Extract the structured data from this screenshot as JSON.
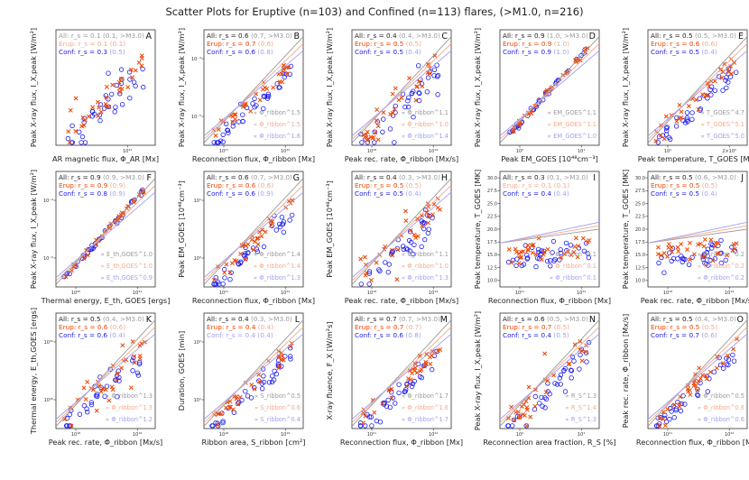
{
  "title": "Scatter Plots for Eruptive (n=103) and Confined (n=113) flares, (>M1.0, n=216)",
  "colors": {
    "all": "#222222",
    "erup": "#ee4400",
    "conf": "#1a1aee",
    "erup_light": "#f5a98a",
    "conf_light": "#a0a0f0",
    "all_light": "#9a9a9a"
  },
  "chart_data": [
    {
      "id": "A",
      "type": "scatter",
      "xlabel": "AR magnetic flux, Φ_AR [Mx]",
      "ylabel": "Peak X-ray flux, I_X,peak [W/m²]",
      "xticks": [
        "10²²"
      ],
      "yticks": [],
      "seed": 1,
      "corr": "loose",
      "stats": [
        {
          "label": "All: r_s = 0.1 ",
          "extra": "(0.1, >M3.0)",
          "faint": true
        },
        {
          "label": "Erup: r_s = 0.1 ",
          "extra": "(0.1)",
          "faint": true
        },
        {
          "label": "Conf: r_s = 0.3 ",
          "extra": "(0.5)",
          "faint": false
        }
      ],
      "fits": []
    },
    {
      "id": "B",
      "type": "scatter",
      "xlabel": "Reconnection flux, Φ_ribbon [Mx]",
      "ylabel": "Peak X-ray flux, I_X,peak [W/m²]",
      "xticks": [
        "10²¹",
        "10²²"
      ],
      "yticks": [
        "10⁻⁴",
        "10⁻⁵"
      ],
      "seed": 2,
      "corr": "medium",
      "stats": [
        {
          "label": "All: r_s = 0.6 ",
          "extra": "(0.7, >M3.0)",
          "faint": false
        },
        {
          "label": "Erup: r_s = 0.7 ",
          "extra": "(0.6)",
          "faint": false
        },
        {
          "label": "Conf: r_s = 0.6 ",
          "extra": "(0.8)",
          "faint": false
        }
      ],
      "fits": [
        "∝ Φ_ribbon^1.5",
        "∝ Φ_ribbon^1.5",
        "∝ Φ_ribbon^1.6"
      ]
    },
    {
      "id": "C",
      "type": "scatter",
      "xlabel": "Peak rec. rate, Φ̇_ribbon [Mx/s]",
      "ylabel": "Peak X-ray flux, I_X,peak [W/m²]",
      "xticks": [
        "10¹⁸",
        "10¹⁹"
      ],
      "yticks": [],
      "seed": 3,
      "corr": "loose",
      "stats": [
        {
          "label": "All: r_s = 0.4 ",
          "extra": "(0.4, >M3.0)",
          "faint": false
        },
        {
          "label": "Erup: r_s = 0.5 ",
          "extra": "(0.5)",
          "faint": false
        },
        {
          "label": "Conf: r_s = 0.5 ",
          "extra": "(0.4)",
          "faint": false
        }
      ],
      "fits": [
        "∝ Φ̇_ribbon^1.1",
        "∝ Φ̇_ribbon^1.0",
        "∝ Φ̇_ribbon^1.4"
      ]
    },
    {
      "id": "D",
      "type": "scatter",
      "xlabel": "Peak EM_GOES [10⁴⁸cm⁻³]",
      "ylabel": "Peak X-ray flux, I_X,peak [W/m²]",
      "xticks": [
        "10⁰",
        "10¹"
      ],
      "yticks": [],
      "seed": 4,
      "corr": "tight",
      "stats": [
        {
          "label": "All: r_s = 0.9 ",
          "extra": "(1.0, >M3.0)",
          "faint": false
        },
        {
          "label": "Erup: r_s = 0.9 ",
          "extra": "(1.0)",
          "faint": false
        },
        {
          "label": "Conf: r_s = 0.9 ",
          "extra": "(1.0)",
          "faint": false
        }
      ],
      "fits": [
        "∝ EM_GOES^1.1",
        "∝ EM_GOES^1.1",
        "∝ EM_GOES^1.0"
      ]
    },
    {
      "id": "E",
      "type": "scatter",
      "xlabel": "Peak temperature, T_GOES [MK]",
      "ylabel": "Peak X-ray flux, I_X,peak [W/m²]",
      "xticks": [
        "10¹",
        "2×10¹"
      ],
      "yticks": [],
      "seed": 5,
      "corr": "medium",
      "stats": [
        {
          "label": "All: r_s = 0.5 ",
          "extra": "(0.5, >M3.0)",
          "faint": false
        },
        {
          "label": "Erup: r_s = 0.6 ",
          "extra": "(0.6)",
          "faint": false
        },
        {
          "label": "Conf: r_s = 0.5 ",
          "extra": "(0.4)",
          "faint": false
        }
      ],
      "fits": [
        "∝ T_GOES^4.7",
        "∝ T_GOES^5.1",
        "∝ T_GOES^5.0"
      ]
    },
    {
      "id": "F",
      "type": "scatter",
      "xlabel": "Thermal energy, E_th, GOES [ergs]",
      "ylabel": "Peak X-ray flux, I_X,peak [W/m²]",
      "xticks": [
        "10³⁰",
        "10³¹"
      ],
      "yticks": [
        "10⁻⁴",
        "10⁻⁵"
      ],
      "seed": 6,
      "corr": "tight",
      "stats": [
        {
          "label": "All: r_s = 0.9 ",
          "extra": "(0.9, >M3.0)",
          "faint": false
        },
        {
          "label": "Erup: r_s = 0.9 ",
          "extra": "(0.9)",
          "faint": false
        },
        {
          "label": "Conf: r_s = 0.8 ",
          "extra": "(0.9)",
          "faint": false
        }
      ],
      "fits": [
        "∝ E_th,GOES^1.0",
        "∝ E_th,GOES^1.0",
        "∝ E_th,GOES^0.9"
      ]
    },
    {
      "id": "G",
      "type": "scatter",
      "xlabel": "Reconnection flux, Φ_ribbon [Mx]",
      "ylabel": "Peak EM_GOES [10⁴⁸cm⁻³]",
      "xticks": [
        "10²¹",
        "10²²"
      ],
      "yticks": [
        "10¹",
        "10⁰"
      ],
      "seed": 7,
      "corr": "medium",
      "stats": [
        {
          "label": "All: r_s = 0.6 ",
          "extra": "(0.7, >M3.0)",
          "faint": false
        },
        {
          "label": "Erup: r_s = 0.6 ",
          "extra": "(0.6)",
          "faint": false
        },
        {
          "label": "Conf: r_s = 0.6 ",
          "extra": "(0.9)",
          "faint": false
        }
      ],
      "fits": [
        "∝ Φ_ribbon^1.4",
        "∝ Φ_ribbon^1.4",
        "∝ Φ_ribbon^1.3"
      ]
    },
    {
      "id": "H",
      "type": "scatter",
      "xlabel": "Peak rec. rate, Φ̇_ribbon [Mx/s]",
      "ylabel": "Peak EM_GOES [10⁴⁸cm⁻³]",
      "xticks": [
        "10¹⁸",
        "10¹⁹"
      ],
      "yticks": [],
      "seed": 8,
      "corr": "loose",
      "stats": [
        {
          "label": "All: r_s = 0.4 ",
          "extra": "(0.3, >M3.0)",
          "faint": false
        },
        {
          "label": "Erup: r_s = 0.5 ",
          "extra": "(0.5)",
          "faint": false
        },
        {
          "label": "Conf: r_s = 0.5 ",
          "extra": "(0.4)",
          "faint": false
        }
      ],
      "fits": [
        "∝ Φ̇_ribbon^1.1",
        "∝ Φ̇_ribbon^1.0",
        "∝ Φ̇_ribbon^1.3"
      ]
    },
    {
      "id": "I",
      "type": "scatter",
      "xlabel": "Reconnection flux, Φ_ribbon [Mx]",
      "ylabel": "Peak temperature, T_GOES [MK]",
      "xticks": [
        "10²¹",
        "10²²"
      ],
      "yticks": [
        "30.0",
        "27.5",
        "25.0",
        "22.5",
        "20.0",
        "17.5",
        "15.0",
        "12.5",
        "10.0"
      ],
      "seed": 9,
      "corr": "flat",
      "stats": [
        {
          "label": "All: r_s = 0.3 ",
          "extra": "(0.1, >M3.0)",
          "faint": false
        },
        {
          "label": "Erup: r_s = 0.1 ",
          "extra": "(0.1)",
          "faint": true
        },
        {
          "label": "Conf: r_s = 0.4 ",
          "extra": "(0.4)",
          "faint": false
        }
      ],
      "fits": [
        "∝ Φ_ribbon^0.1",
        "∝ Φ_ribbon^0.1",
        "∝ Φ_ribbon^0.1"
      ]
    },
    {
      "id": "J",
      "type": "scatter",
      "xlabel": "Peak rec. rate, Φ̇_ribbon [Mx/s]",
      "ylabel": "Peak temperature, T_GOES [MK]",
      "xticks": [
        "10¹⁸",
        "10¹⁹"
      ],
      "yticks": [
        "30.0",
        "27.5",
        "25.0",
        "22.5",
        "20.0",
        "17.5",
        "15.0",
        "12.5",
        "10.0"
      ],
      "seed": 10,
      "corr": "flat",
      "stats": [
        {
          "label": "All: r_s = 0.5 ",
          "extra": "(0.6, >M3.0)",
          "faint": false
        },
        {
          "label": "Erup: r_s = 0.5 ",
          "extra": "(0.5)",
          "faint": false
        },
        {
          "label": "Conf: r_s = 0.5 ",
          "extra": "(0.4)",
          "faint": false
        }
      ],
      "fits": [
        "∝ Φ̇_ribbon^0.2",
        "∝ Φ̇_ribbon^0.2",
        "∝ Φ̇_ribbon^0.2"
      ]
    },
    {
      "id": "K",
      "type": "scatter",
      "xlabel": "Peak rec. rate, Φ̇_ribbon [Mx/s]",
      "ylabel": "Thermal energy, E_th,GOES [ergs]",
      "xticks": [
        "10¹⁸",
        "10¹⁹"
      ],
      "yticks": [
        "10³¹",
        "10³⁰"
      ],
      "seed": 11,
      "corr": "loose",
      "stats": [
        {
          "label": "All: r_s = 0.5 ",
          "extra": "(0.4, >M3.0)",
          "faint": false
        },
        {
          "label": "Erup: r_s = 0.6 ",
          "extra": "(0.6)",
          "faint": false
        },
        {
          "label": "Conf: r_s = 0.6 ",
          "extra": "(0.4)",
          "faint": false
        }
      ],
      "fits": [
        "∝ Φ̇_ribbon^1.3",
        "∝ Φ̇_ribbon^1.3",
        "∝ Φ̇_ribbon^1.2"
      ]
    },
    {
      "id": "L",
      "type": "scatter",
      "xlabel": "Ribbon area, S_ribbon [cm²]",
      "ylabel": "Duration, GOES [min]",
      "xticks": [
        "10¹⁸",
        "10¹⁹"
      ],
      "yticks": [
        "10²",
        "10¹"
      ],
      "seed": 12,
      "corr": "medium",
      "stats": [
        {
          "label": "All: r_s = 0.4 ",
          "extra": "(0.3, >M3.0)",
          "faint": false
        },
        {
          "label": "Erup: r_s = 0.4 ",
          "extra": "(0.4)",
          "faint": false
        },
        {
          "label": "Conf: r_s = 0.4 ",
          "extra": "(0.4)",
          "faint": true
        }
      ],
      "fits": [
        "∝ S_ribbon^0.5",
        "∝ S_ribbon^0.6",
        "∝ S_ribbon^0.4"
      ]
    },
    {
      "id": "M",
      "type": "scatter",
      "xlabel": "Reconnection flux, Φ_ribbon [Mx]",
      "ylabel": "X-ray fluence, F_X [W/m²s]",
      "xticks": [
        "10²¹",
        "10²²"
      ],
      "yticks": [],
      "seed": 13,
      "corr": "medium",
      "stats": [
        {
          "label": "All: r_s = 0.7 ",
          "extra": "(0.7, >M3.0)",
          "faint": false
        },
        {
          "label": "Erup: r_s = 0.7 ",
          "extra": "(0.7)",
          "faint": false
        },
        {
          "label": "Conf: r_s = 0.6 ",
          "extra": "(0.8)",
          "faint": false
        }
      ],
      "fits": [
        "∝ Φ_ribbon^1.7",
        "∝ Φ_ribbon^1.6",
        "∝ Φ_ribbon^1.7"
      ]
    },
    {
      "id": "N",
      "type": "scatter",
      "xlabel": "Reconnection area fraction, R_S [%]",
      "ylabel": "Peak X-ray flux, I_X,peak [W/m²]",
      "xticks": [
        "10⁰",
        "10¹"
      ],
      "yticks": [],
      "seed": 14,
      "corr": "loose",
      "stats": [
        {
          "label": "All: r_s = 0.6 ",
          "extra": "(0.5, >M3.0)",
          "faint": false
        },
        {
          "label": "Erup: r_s = 0.7 ",
          "extra": "(0.5)",
          "faint": false
        },
        {
          "label": "Conf: r_s = 0.4 ",
          "extra": "(0.5)",
          "faint": false
        }
      ],
      "fits": [
        "∝ R_S^1.3",
        "∝ R_S^1.4",
        "∝ R_S^1.3"
      ]
    },
    {
      "id": "O",
      "type": "scatter",
      "xlabel": "Reconnection flux, Φ_ribbon [Mx]",
      "ylabel": "Peak rec. rate, Φ̇_ribbon [Mx/s]",
      "xticks": [
        "10²¹",
        "10²²"
      ],
      "yticks": [],
      "seed": 15,
      "corr": "medium",
      "stats": [
        {
          "label": "All: r_s = 0.5 ",
          "extra": "(0.4, >M3.0)",
          "faint": false
        },
        {
          "label": "Erup: r_s = 0.5 ",
          "extra": "(0.5)",
          "faint": false
        },
        {
          "label": "Conf: r_s = 0.7 ",
          "extra": "(0.6)",
          "faint": false
        }
      ],
      "fits": [
        "∝ Φ_ribbon^0.5",
        "∝ Φ_ribbon^0.6",
        "∝ Φ_ribbon^0.6"
      ]
    }
  ]
}
